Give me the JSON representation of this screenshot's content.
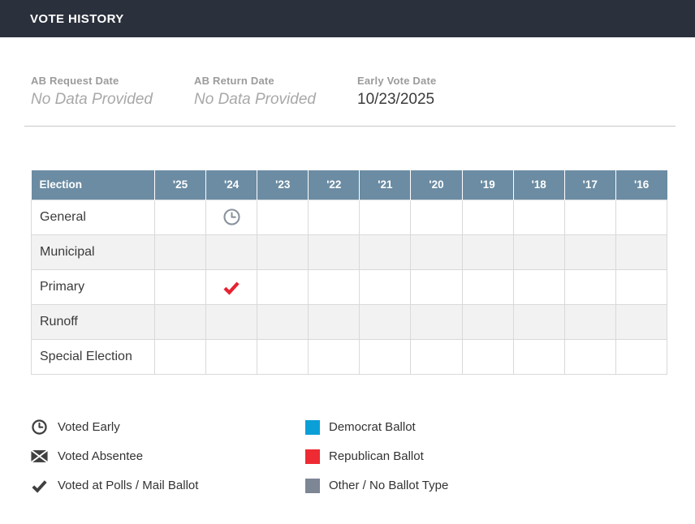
{
  "header": {
    "title": "VOTE HISTORY"
  },
  "summary": {
    "fields": [
      {
        "label": "AB Request Date",
        "value": "No Data Provided",
        "empty": true
      },
      {
        "label": "AB Return Date",
        "value": "No Data Provided",
        "empty": true
      },
      {
        "label": "Early Vote Date",
        "value": "10/23/2025",
        "empty": false
      }
    ]
  },
  "table": {
    "first_column_header": "Election",
    "year_columns": [
      "'25",
      "'24",
      "'23",
      "'22",
      "'21",
      "'20",
      "'19",
      "'18",
      "'17",
      "'16"
    ],
    "rows": [
      {
        "label": "General",
        "cells": {
          "'24": "voted-early"
        }
      },
      {
        "label": "Municipal",
        "cells": {}
      },
      {
        "label": "Primary",
        "cells": {
          "'24": "voted-at-polls"
        }
      },
      {
        "label": "Runoff",
        "cells": {}
      },
      {
        "label": "Special Election",
        "cells": {}
      }
    ]
  },
  "legend": {
    "left": [
      {
        "icon": "clock-icon",
        "label": "Voted Early"
      },
      {
        "icon": "envelope-icon",
        "label": "Voted Absentee"
      },
      {
        "icon": "check-icon",
        "label": "Voted at Polls / Mail Ballot"
      }
    ],
    "right": [
      {
        "icon": "ballot-swatch",
        "color": "#0b9fd8",
        "label": "Democrat Ballot"
      },
      {
        "icon": "ballot-swatch",
        "color": "#ee2b33",
        "label": "Republican Ballot"
      },
      {
        "icon": "ballot-swatch",
        "color": "#7d8694",
        "label": "Other / No Ballot Type"
      }
    ]
  },
  "colors": {
    "top_bar": "#2a303c",
    "table_header_bg": "#6b8ca3",
    "row_stripe": "#f2f2f2",
    "voted_early_mark": "#8a939d",
    "voted_at_polls_mark": "#e62231"
  }
}
